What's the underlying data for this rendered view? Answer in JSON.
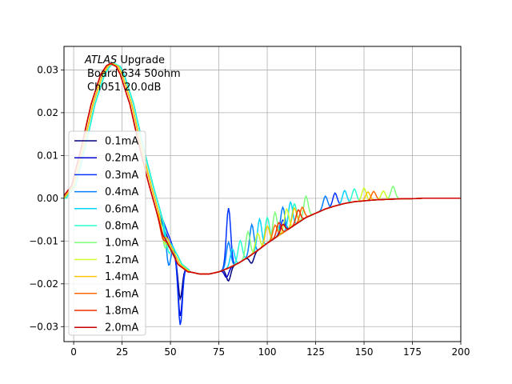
{
  "chart_data": {
    "type": "line",
    "title": "",
    "xlabel": "",
    "ylabel": "",
    "xlim": [
      -5,
      200
    ],
    "ylim": [
      -0.0335,
      0.0355
    ],
    "grid": true,
    "x_ticks": [
      0,
      25,
      50,
      75,
      100,
      125,
      150,
      175,
      200
    ],
    "y_ticks": [
      -0.03,
      -0.02,
      -0.01,
      0.0,
      0.01,
      0.02,
      0.03
    ],
    "x_tick_labels": [
      "0",
      "25",
      "50",
      "75",
      "100",
      "125",
      "150",
      "175",
      "200"
    ],
    "y_tick_labels": [
      "−0.03",
      "−0.02",
      "−0.01",
      "0.00",
      "0.01",
      "0.02",
      "0.03"
    ],
    "annotation": {
      "line1_italic": "ATLAS",
      "line1_rest": " Upgrade",
      "line2": "Board 634 50ohm",
      "line3": "Ch051 20.0dB"
    },
    "legend_position": "center-left",
    "base_curve": {
      "x": [
        -5,
        0,
        5,
        10,
        15,
        18,
        20,
        23,
        25,
        30,
        35,
        40,
        45,
        50,
        55,
        60,
        65,
        70,
        75,
        80,
        85,
        90,
        95,
        100,
        105,
        110,
        115,
        120,
        125,
        130,
        135,
        140,
        145,
        150,
        155,
        160,
        165,
        170,
        175,
        180,
        185,
        190,
        195,
        200
      ],
      "y": [
        0.0,
        0.003,
        0.012,
        0.022,
        0.029,
        0.031,
        0.0315,
        0.0308,
        0.029,
        0.022,
        0.012,
        0.003,
        -0.005,
        -0.011,
        -0.0155,
        -0.0172,
        -0.0177,
        -0.0177,
        -0.0172,
        -0.0163,
        -0.0152,
        -0.0138,
        -0.0122,
        -0.0105,
        -0.009,
        -0.0075,
        -0.006,
        -0.0045,
        -0.0035,
        -0.0025,
        -0.0018,
        -0.0012,
        -0.0008,
        -0.0006,
        -0.0004,
        -0.0003,
        -0.0002,
        -0.0001,
        -0.0001,
        0.0,
        0.0,
        0.0,
        0.0,
        0.0
      ]
    },
    "series": [
      {
        "name": "0.1mA",
        "color": "#00007f",
        "peak_x": 20,
        "spikes": [
          [
            55,
            -0.008
          ],
          [
            80,
            -0.003
          ],
          [
            92,
            -0.002
          ]
        ]
      },
      {
        "name": "0.2mA",
        "color": "#0000d0",
        "peak_x": 20,
        "spikes": [
          [
            55,
            -0.012
          ],
          [
            79,
            -0.002
          ]
        ]
      },
      {
        "name": "0.3mA",
        "color": "#0032ff",
        "peak_x": 21,
        "spikes": [
          [
            55,
            -0.015
          ],
          [
            80,
            0.014
          ],
          [
            108,
            0.003
          ],
          [
            135,
            0.003
          ]
        ]
      },
      {
        "name": "0.4mA",
        "color": "#007fff",
        "peak_x": 21,
        "spikes": [
          [
            49,
            -0.007
          ],
          [
            80,
            0.006
          ],
          [
            92,
            0.007
          ],
          [
            108,
            0.006
          ],
          [
            130,
            0.003
          ]
        ]
      },
      {
        "name": "0.6mA",
        "color": "#00d4ff",
        "peak_x": 21,
        "spikes": [
          [
            48,
            -0.004
          ],
          [
            82,
            0.004
          ],
          [
            96,
            0.007
          ],
          [
            112,
            0.006
          ],
          [
            140,
            0.003
          ]
        ]
      },
      {
        "name": "0.8mA",
        "color": "#29ffce",
        "peak_x": 21,
        "spikes": [
          [
            49,
            -0.004
          ],
          [
            86,
            0.005
          ],
          [
            100,
            0.006
          ],
          [
            114,
            0.005
          ],
          [
            145,
            0.003
          ]
        ]
      },
      {
        "name": "1.0mA",
        "color": "#7dff7a",
        "peak_x": 20,
        "spikes": [
          [
            47,
            -0.004
          ],
          [
            90,
            0.006
          ],
          [
            104,
            0.006
          ],
          [
            120,
            0.005
          ],
          [
            165,
            0.003
          ]
        ]
      },
      {
        "name": "1.2mA",
        "color": "#ceff29",
        "peak_x": 20,
        "spikes": [
          [
            47,
            -0.003
          ],
          [
            95,
            0.004
          ],
          [
            110,
            0.005
          ],
          [
            150,
            0.003
          ],
          [
            160,
            0.002
          ]
        ]
      },
      {
        "name": "1.4mA",
        "color": "#ffc400",
        "peak_x": 20,
        "spikes": [
          [
            46,
            -0.003
          ],
          [
            100,
            0.004
          ],
          [
            114,
            0.004
          ],
          [
            152,
            0.002
          ]
        ]
      },
      {
        "name": "1.6mA",
        "color": "#ff6800",
        "peak_x": 19,
        "spikes": [
          [
            46,
            -0.002
          ],
          [
            104,
            0.003
          ],
          [
            118,
            0.003
          ],
          [
            155,
            0.002
          ]
        ]
      },
      {
        "name": "1.8mA",
        "color": "#ee2f00",
        "peak_x": 19,
        "spikes": [
          [
            46,
            -0.002
          ],
          [
            106,
            0.003
          ],
          [
            116,
            0.003
          ]
        ]
      },
      {
        "name": "2.0mA",
        "color": "#ce0000",
        "peak_x": 19,
        "spikes": [
          [
            46,
            -0.001
          ],
          [
            108,
            0.002
          ]
        ]
      }
    ]
  }
}
